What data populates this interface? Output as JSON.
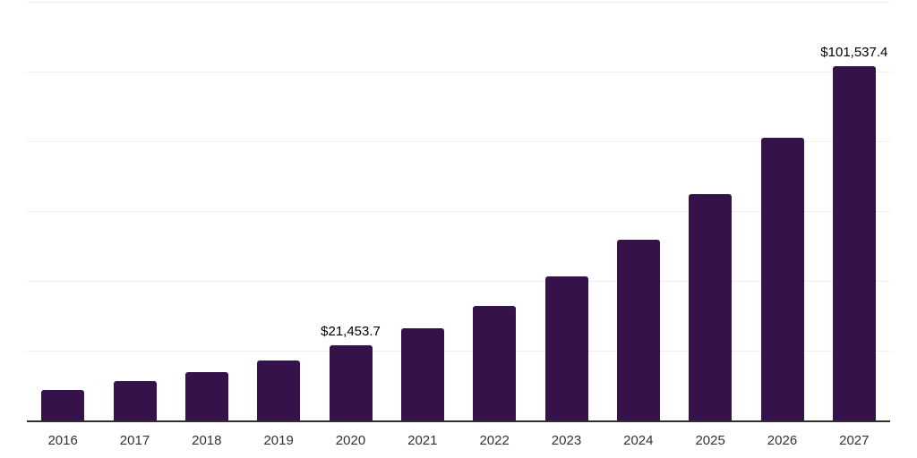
{
  "chart_data": {
    "type": "bar",
    "title": "",
    "xlabel": "",
    "ylabel": "",
    "categories": [
      "2016",
      "2017",
      "2018",
      "2019",
      "2020",
      "2021",
      "2022",
      "2023",
      "2024",
      "2025",
      "2026",
      "2027"
    ],
    "values": [
      8700,
      11250,
      13800,
      17100,
      21453.7,
      26350,
      32950,
      41200,
      51750,
      64900,
      81100,
      101537.4
    ],
    "value_labels": {
      "2020": "$21,453.7",
      "2027": "$101,537.4"
    },
    "ylim": [
      0,
      120000
    ],
    "grid_interval": 20000,
    "grid": "horizontal-only",
    "y_axis_tick_labels": "none",
    "legend": "none",
    "colors": {
      "bar": "#36124b",
      "axis_line": "#2e2e2e",
      "gridline": "#efefef",
      "tick_label": "#333333",
      "value_label": "#000000",
      "background": "#ffffff"
    }
  }
}
